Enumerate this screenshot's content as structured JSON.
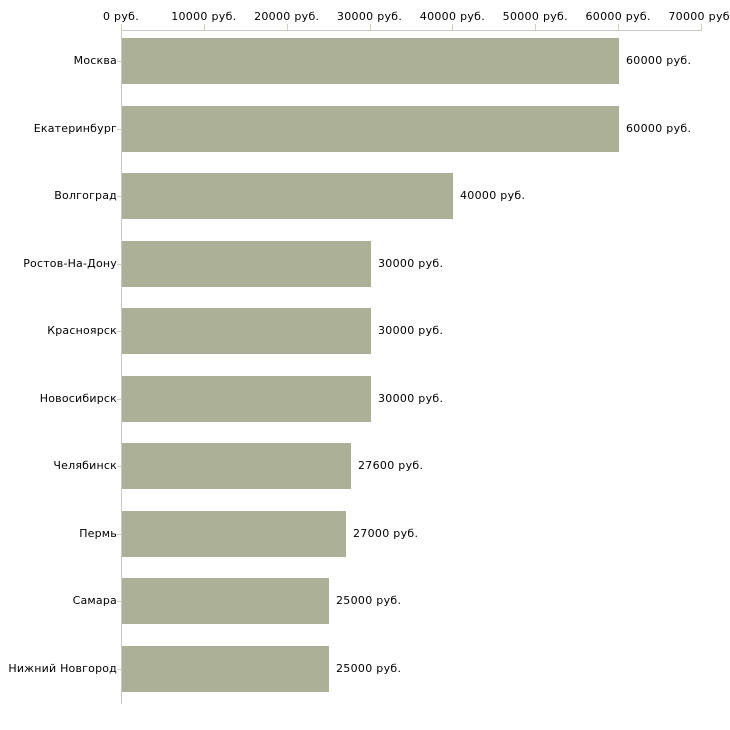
{
  "chart_data": {
    "type": "bar",
    "orientation": "horizontal",
    "title": "",
    "categories": [
      "Москва",
      "Екатеринбург",
      "Волгоград",
      "Ростов-На-Дону",
      "Красноярск",
      "Новосибирск",
      "Челябинск",
      "Пермь",
      "Самара",
      "Нижний Новгород"
    ],
    "values": [
      60000,
      60000,
      40000,
      30000,
      30000,
      30000,
      27600,
      27000,
      25000,
      25000
    ],
    "value_labels": [
      "60000 руб.",
      "60000 руб.",
      "40000 руб.",
      "30000 руб.",
      "30000 руб.",
      "30000 руб.",
      "27600 руб.",
      "27000 руб.",
      "25000 руб.",
      "25000 руб."
    ],
    "x_ticks": [
      0,
      10000,
      20000,
      30000,
      40000,
      50000,
      60000,
      70000
    ],
    "x_tick_labels": [
      "0 руб.",
      "10000 руб.",
      "20000 руб.",
      "30000 руб.",
      "40000 руб.",
      "50000 руб.",
      "60000 руб.",
      "70000 руб."
    ],
    "xlim": [
      0,
      70000
    ],
    "unit_suffix": "руб.",
    "legend": null,
    "grid": false,
    "colors": {
      "bar": "#abb097",
      "axis": "#c9c9c9",
      "tick": "#cfcfba",
      "text": "#000000",
      "background": "#ffffff"
    }
  }
}
